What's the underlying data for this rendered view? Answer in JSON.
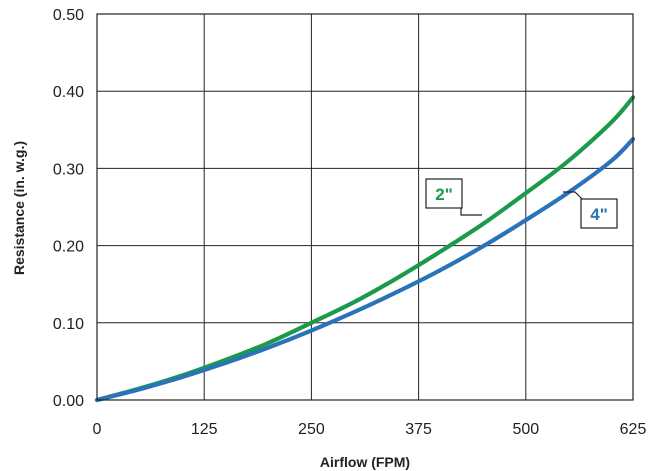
{
  "chart_data": {
    "type": "line",
    "xlabel": "Airflow (FPM)",
    "ylabel": "Resistance (in. w.g.)",
    "xlim": [
      0,
      625
    ],
    "ylim": [
      0,
      0.5
    ],
    "x_ticks": [
      0,
      125,
      250,
      375,
      500,
      625
    ],
    "x_tick_labels": [
      "0",
      "125",
      "250",
      "375",
      "500",
      "625"
    ],
    "y_ticks": [
      0,
      0.1,
      0.2,
      0.3,
      0.4,
      0.5
    ],
    "y_tick_labels": [
      "0.00",
      "0.10",
      "0.20",
      "0.30",
      "0.40",
      "0.50"
    ],
    "grid": true,
    "series": [
      {
        "name": "2\"",
        "color": "#1a9a4a",
        "x": [
          0,
          50,
          100,
          150,
          200,
          250,
          300,
          350,
          400,
          450,
          500,
          550,
          600,
          625
        ],
        "y": [
          0.0,
          0.015,
          0.032,
          0.052,
          0.074,
          0.1,
          0.127,
          0.158,
          0.192,
          0.228,
          0.268,
          0.31,
          0.36,
          0.392
        ]
      },
      {
        "name": "4\"",
        "color": "#2a73b8",
        "x": [
          0,
          50,
          100,
          150,
          200,
          250,
          300,
          350,
          400,
          450,
          500,
          550,
          600,
          625
        ],
        "y": [
          0.0,
          0.014,
          0.03,
          0.048,
          0.068,
          0.09,
          0.114,
          0.14,
          0.168,
          0.199,
          0.233,
          0.269,
          0.31,
          0.338
        ]
      }
    ]
  }
}
